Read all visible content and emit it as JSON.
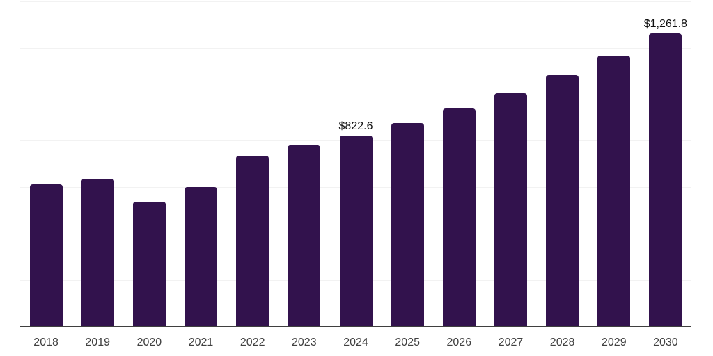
{
  "chart_data": {
    "type": "bar",
    "title": "",
    "xlabel": "",
    "ylabel": "",
    "categories": [
      "2018",
      "2019",
      "2020",
      "2021",
      "2022",
      "2023",
      "2024",
      "2025",
      "2026",
      "2027",
      "2028",
      "2029",
      "2030"
    ],
    "values": [
      612,
      636,
      538,
      601,
      734,
      780,
      822.6,
      877,
      939,
      1004,
      1082,
      1167,
      1261.8
    ],
    "data_labels": [
      null,
      null,
      null,
      null,
      null,
      null,
      "$822.6",
      null,
      null,
      null,
      null,
      null,
      "$1,261.8"
    ],
    "ylim": [
      0,
      1400
    ],
    "gridline_step": 200,
    "grid": "on",
    "legend": "none",
    "y_axis_tick_labels_visible": false,
    "colors": {
      "bar": "#32124d",
      "gridline": "#f2f2f2",
      "axis_line": "#3f3f3f",
      "tick_label": "#404040",
      "data_label": "#111111",
      "background": "#ffffff"
    }
  }
}
